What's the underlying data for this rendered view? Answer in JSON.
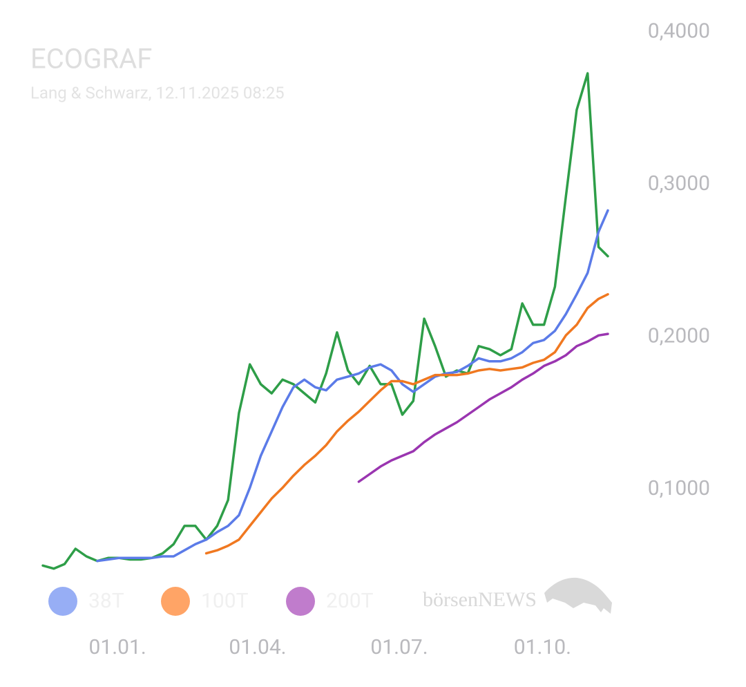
{
  "chart_data": {
    "type": "line",
    "title": "ECOGRAF",
    "subtitle": "Lang & Schwarz, 12.11.2025 08:25",
    "watermark": "börsenNEWS",
    "x": [
      "14.11.",
      "21.11.",
      "28.11.",
      "05.12.",
      "12.12.",
      "19.12.",
      "26.12.",
      "02.01.",
      "09.01.",
      "16.01.",
      "23.01.",
      "30.01.",
      "06.02.",
      "13.02.",
      "20.02.",
      "27.02.",
      "06.03.",
      "13.03.",
      "20.03.",
      "27.03.",
      "03.04.",
      "10.04.",
      "17.04.",
      "24.04.",
      "01.05.",
      "08.05.",
      "15.05.",
      "22.05.",
      "29.05.",
      "05.06.",
      "12.06.",
      "19.06.",
      "26.06.",
      "03.07.",
      "10.07.",
      "17.07.",
      "24.07.",
      "31.07.",
      "07.08.",
      "14.08.",
      "21.08.",
      "28.08.",
      "04.09.",
      "11.09.",
      "18.09.",
      "25.09.",
      "02.10.",
      "09.10.",
      "16.10.",
      "23.10.",
      "30.10.",
      "06.11.",
      "12.11."
    ],
    "xlim": [
      "14.11.",
      "12.11."
    ],
    "xticks": [
      "01.01.",
      "01.04.",
      "01.07.",
      "01.10."
    ],
    "ylim": [
      0.045,
      0.405
    ],
    "yticks": [
      {
        "value": 0.1,
        "label": "0,1000"
      },
      {
        "value": 0.2,
        "label": "0,2000"
      },
      {
        "value": 0.3,
        "label": "0,3000"
      },
      {
        "value": 0.4,
        "label": "0,4000"
      }
    ],
    "grid": false,
    "series": [
      {
        "color": "#2e9e48",
        "values": [
          0.05,
          0.048,
          0.051,
          0.061,
          0.056,
          0.053,
          0.055,
          0.055,
          0.054,
          0.054,
          0.055,
          0.058,
          0.064,
          0.076,
          0.076,
          0.067,
          0.076,
          0.093,
          0.15,
          0.182,
          0.169,
          0.163,
          0.172,
          0.169,
          0.163,
          0.157,
          0.176,
          0.203,
          0.178,
          0.169,
          0.181,
          0.169,
          0.169,
          0.149,
          0.158,
          0.212,
          0.194,
          0.174,
          0.178,
          0.176,
          0.194,
          0.192,
          0.188,
          0.192,
          0.222,
          0.208,
          0.208,
          0.233,
          0.292,
          0.349,
          0.373,
          0.259,
          0.253
        ]
      },
      {
        "name": "38T",
        "color": "#5b7be8",
        "legend_color": "#97aef5",
        "values": [
          null,
          null,
          null,
          null,
          null,
          0.053,
          0.054,
          0.055,
          0.055,
          0.055,
          0.055,
          0.056,
          0.056,
          0.06,
          0.064,
          0.067,
          0.072,
          0.076,
          0.083,
          0.101,
          0.122,
          0.138,
          0.154,
          0.167,
          0.172,
          0.167,
          0.165,
          0.172,
          0.174,
          0.176,
          0.18,
          0.182,
          0.178,
          0.169,
          0.164,
          0.169,
          0.174,
          0.176,
          0.177,
          0.181,
          0.186,
          0.184,
          0.184,
          0.186,
          0.19,
          0.196,
          0.198,
          0.204,
          0.215,
          0.228,
          0.242,
          0.269,
          0.283
        ]
      },
      {
        "name": "100T",
        "color": "#f07820",
        "legend_color": "#ffa466",
        "values": [
          null,
          null,
          null,
          null,
          null,
          null,
          null,
          null,
          null,
          null,
          null,
          null,
          null,
          null,
          null,
          0.058,
          0.06,
          0.063,
          0.067,
          0.076,
          0.085,
          0.094,
          0.101,
          0.109,
          0.116,
          0.122,
          0.129,
          0.138,
          0.145,
          0.151,
          0.158,
          0.165,
          0.171,
          0.171,
          0.169,
          0.172,
          0.175,
          0.175,
          0.175,
          0.176,
          0.178,
          0.179,
          0.178,
          0.179,
          0.18,
          0.183,
          0.185,
          0.19,
          0.201,
          0.208,
          0.219,
          0.225,
          0.228
        ]
      },
      {
        "name": "200T",
        "color": "#9a35b0",
        "legend_color": "#c07ccc",
        "values": [
          null,
          null,
          null,
          null,
          null,
          null,
          null,
          null,
          null,
          null,
          null,
          null,
          null,
          null,
          null,
          null,
          null,
          null,
          null,
          null,
          null,
          null,
          null,
          null,
          null,
          null,
          null,
          null,
          null,
          0.105,
          0.11,
          0.115,
          0.119,
          0.122,
          0.125,
          0.131,
          0.136,
          0.14,
          0.144,
          0.149,
          0.154,
          0.159,
          0.163,
          0.167,
          0.172,
          0.176,
          0.181,
          0.184,
          0.188,
          0.194,
          0.197,
          0.201,
          0.202
        ]
      }
    ]
  }
}
